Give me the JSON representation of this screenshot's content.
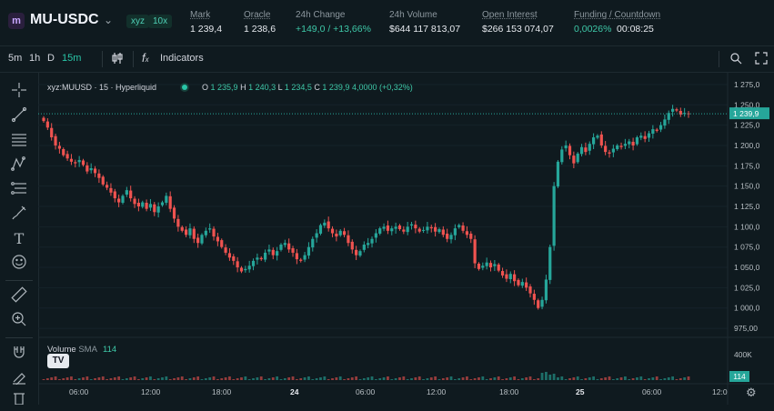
{
  "header": {
    "logo_glyph": "m",
    "symbol": "MU-USDC",
    "badge_dex": "xyz",
    "badge_leverage": "10x",
    "stats": [
      {
        "label": "Mark",
        "value": "1 239,4"
      },
      {
        "label": "Oracle",
        "value": "1 238,6"
      },
      {
        "label": "24h Change",
        "value": "+149,0 / +13,66%"
      },
      {
        "label": "24h Volume",
        "value": "$644 117 813,07"
      },
      {
        "label": "Open Interest",
        "value": "$266 153 074,07"
      },
      {
        "label": "Funding / Countdown",
        "value": "0,0026%",
        "value2": "00:08:25"
      }
    ]
  },
  "toolbar": {
    "timeframes": [
      "5m",
      "1h",
      "D",
      "15m"
    ],
    "indicators_label": "Indicators"
  },
  "legend": {
    "title": "xyz:MUUSD · 15 · Hyperliquid",
    "o_label": "O",
    "o": "1 235,9",
    "h_label": "H",
    "h": "1 240,3",
    "l_label": "L",
    "l": "1 234,5",
    "c_label": "C",
    "c": "1 239,9",
    "change": "4,0000 (+0,32%)"
  },
  "volume": {
    "label": "Volume",
    "indicator": "SMA",
    "value": "114",
    "axis_label": "400K",
    "badge": "114"
  },
  "colors": {
    "up": "#26a69a",
    "down": "#ef5350",
    "bg": "#0f1a1f",
    "accent": "#29c5a7"
  },
  "chart_data": {
    "type": "candlestick",
    "price_ticks": [
      "1 275,0",
      "1 250,0",
      "1 225,0",
      "1 200,0",
      "1 175,0",
      "1 150,0",
      "1 125,0",
      "1 100,0",
      "1 075,0",
      "1 050,0",
      "1 025,0",
      "1 000,0",
      "975,00"
    ],
    "current_price_label": "1 239,9",
    "time_ticks": [
      "06:00",
      "12:00",
      "18:00",
      "24",
      "06:00",
      "12:00",
      "18:00",
      "25",
      "06:00",
      "12:0"
    ],
    "ylim": [
      965,
      1285
    ],
    "close_series": [
      1230,
      1222,
      1210,
      1200,
      1196,
      1188,
      1184,
      1180,
      1178,
      1182,
      1176,
      1168,
      1172,
      1166,
      1160,
      1152,
      1148,
      1142,
      1135,
      1130,
      1138,
      1145,
      1135,
      1128,
      1125,
      1130,
      1122,
      1128,
      1118,
      1125,
      1130,
      1138,
      1122,
      1110,
      1100,
      1095,
      1090,
      1098,
      1085,
      1080,
      1090,
      1095,
      1098,
      1088,
      1082,
      1075,
      1068,
      1062,
      1058,
      1050,
      1045,
      1048,
      1052,
      1058,
      1062,
      1060,
      1068,
      1072,
      1065,
      1070,
      1078,
      1080,
      1072,
      1068,
      1060,
      1058,
      1065,
      1075,
      1085,
      1092,
      1102,
      1105,
      1098,
      1092,
      1088,
      1095,
      1090,
      1080,
      1072,
      1065,
      1070,
      1078,
      1080,
      1085,
      1092,
      1098,
      1100,
      1095,
      1098,
      1100,
      1097,
      1094,
      1100,
      1103,
      1098,
      1094,
      1096,
      1100,
      1098,
      1094,
      1097,
      1090,
      1085,
      1090,
      1098,
      1102,
      1095,
      1090,
      1085,
      1055,
      1048,
      1052,
      1056,
      1050,
      1054,
      1046,
      1040,
      1036,
      1042,
      1033,
      1028,
      1032,
      1025,
      1018,
      1010,
      1000,
      1010,
      1035,
      1075,
      1150,
      1180,
      1195,
      1200,
      1188,
      1178,
      1190,
      1198,
      1192,
      1202,
      1210,
      1212,
      1200,
      1192,
      1190,
      1196,
      1200,
      1198,
      1202,
      1205,
      1200,
      1210,
      1212,
      1208,
      1215,
      1220,
      1218,
      1225,
      1232,
      1240,
      1245,
      1243,
      1238,
      1240,
      1239
    ]
  }
}
